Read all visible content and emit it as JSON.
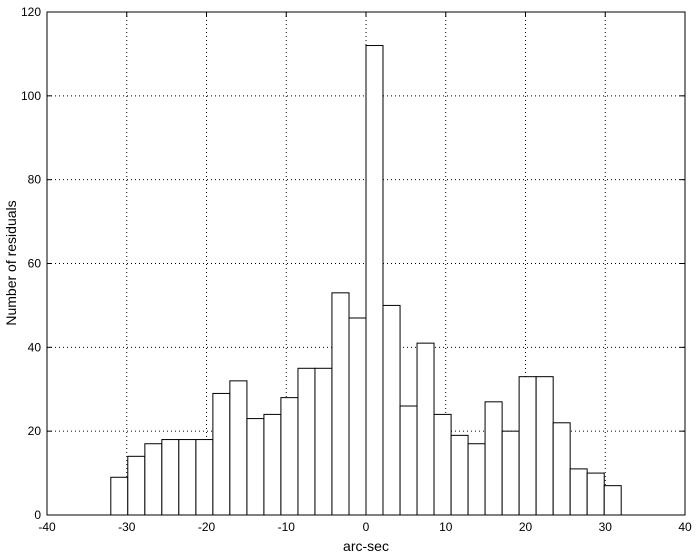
{
  "chart_data": {
    "type": "histogram",
    "xlabel": "arc-sec",
    "ylabel": "Number of residuals",
    "bins": [
      -32,
      -29.87,
      -27.73,
      -25.6,
      -23.47,
      -21.33,
      -19.2,
      -17.07,
      -14.93,
      -12.8,
      -10.67,
      -8.53,
      -6.4,
      -4.27,
      -2.13,
      0,
      2.13,
      4.27,
      6.4,
      8.53,
      10.67,
      12.8,
      14.93,
      17.07,
      19.2,
      21.33,
      23.47,
      25.6,
      27.73,
      29.87,
      32
    ],
    "values": [
      9,
      14,
      17,
      18,
      18,
      18,
      29,
      32,
      23,
      24,
      28,
      35,
      35,
      53,
      47,
      112,
      50,
      26,
      41,
      24,
      19,
      17,
      27,
      20,
      33,
      33,
      22,
      11,
      10,
      7
    ],
    "color": "#ffffff",
    "xlim": [
      -40,
      40
    ],
    "xticks": [
      -40,
      -30,
      -20,
      -10,
      0,
      10,
      20,
      30,
      40
    ],
    "ylim": [
      0,
      120
    ],
    "yticks": [
      0,
      20,
      40,
      60,
      80,
      100,
      120
    ],
    "grid": true
  }
}
